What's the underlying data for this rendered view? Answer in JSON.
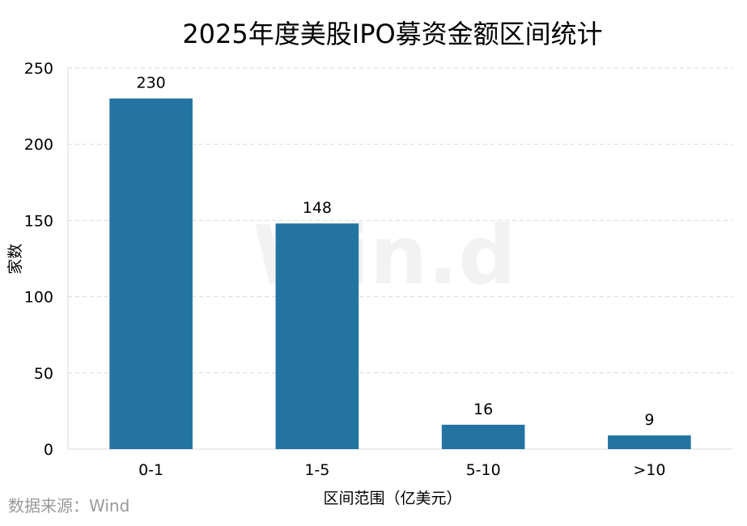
{
  "chart_data": {
    "type": "bar",
    "title": "2025年度美股IPO募资金额区间统计",
    "xlabel": "区间范围（亿美元）",
    "ylabel": "家数",
    "categories": [
      "0-1",
      "1-5",
      "5-10",
      ">10"
    ],
    "values": [
      230,
      148,
      16,
      9
    ],
    "ylim": [
      0,
      250
    ],
    "yticks": [
      0,
      50,
      100,
      150,
      200,
      250
    ],
    "grid": true,
    "bar_color": "#2474a2",
    "grid_color": "#d9d9d9"
  },
  "source": "数据来源：Wind",
  "watermark": "Win.d"
}
